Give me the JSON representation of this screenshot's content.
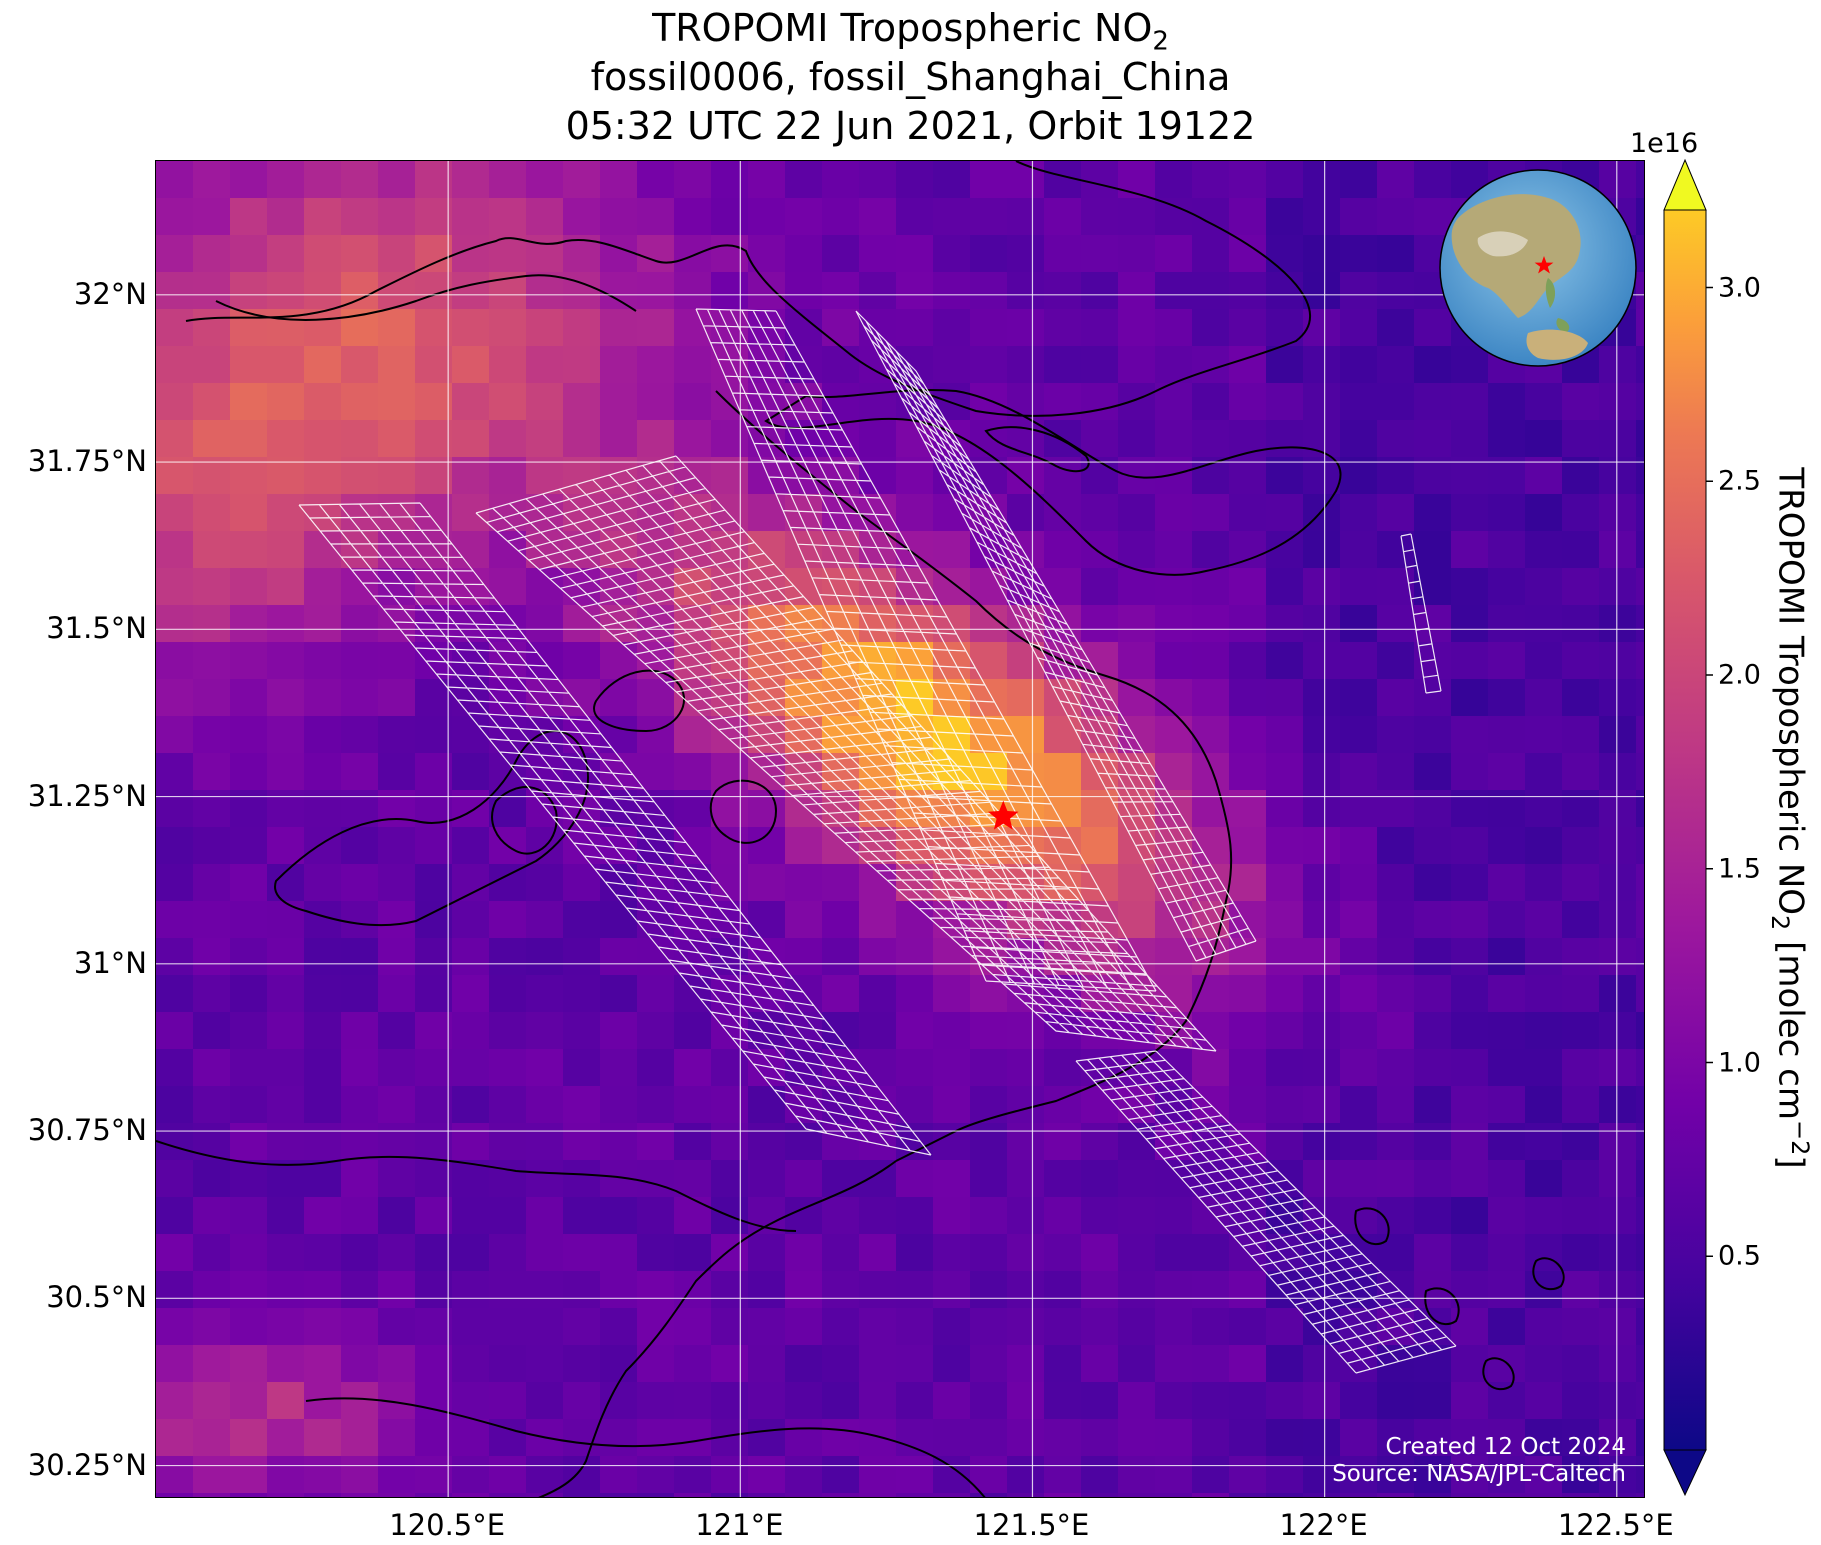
{
  "title": {
    "line1": "TROPOMI Tropospheric NO",
    "line1_sub": "2",
    "line2": "fossil0006, fossil_Shanghai_China",
    "line3": "05:32 UTC 22 Jun 2021, Orbit 19122"
  },
  "map": {
    "lon_range": [
      120.0,
      122.55
    ],
    "lat_range": [
      30.2,
      32.2
    ],
    "lat_ticks": [
      {
        "value": 32.0,
        "label": "32°N"
      },
      {
        "value": 31.75,
        "label": "31.75°N"
      },
      {
        "value": 31.5,
        "label": "31.5°N"
      },
      {
        "value": 31.25,
        "label": "31.25°N"
      },
      {
        "value": 31.0,
        "label": "31°N"
      },
      {
        "value": 30.75,
        "label": "30.75°N"
      },
      {
        "value": 30.5,
        "label": "30.5°N"
      },
      {
        "value": 30.25,
        "label": "30.25°N"
      }
    ],
    "lon_ticks": [
      {
        "value": 120.5,
        "label": "120.5°E"
      },
      {
        "value": 121.0,
        "label": "121°E"
      },
      {
        "value": 121.5,
        "label": "121.5°E"
      },
      {
        "value": 122.0,
        "label": "122°E"
      },
      {
        "value": 122.5,
        "label": "122.5°E"
      }
    ],
    "target_marker": {
      "lon": 121.45,
      "lat": 31.22,
      "color": "#ff0000"
    },
    "grid_color": "#ffffff",
    "overlay_color": "#ffffff"
  },
  "credit": {
    "line1": "Created 12 Oct 2024",
    "line2": "Source: NASA/JPL-Caltech"
  },
  "colorbar": {
    "exponent": "1e16",
    "ticks": [
      {
        "value": 0.5,
        "label": "0.5"
      },
      {
        "value": 1.0,
        "label": "1.0"
      },
      {
        "value": 1.5,
        "label": "1.5"
      },
      {
        "value": 2.0,
        "label": "2.0"
      },
      {
        "value": 2.5,
        "label": "2.5"
      },
      {
        "value": 3.0,
        "label": "3.0"
      }
    ],
    "range": [
      0.0,
      3.2
    ],
    "label_main": "TROPOMI Tropospheric NO",
    "label_sub": "2",
    "label_units": " [molec cm",
    "label_exp": "−2",
    "label_close": "]",
    "colormap": "plasma"
  },
  "globe": {
    "marker_color": "#ff0000"
  }
}
